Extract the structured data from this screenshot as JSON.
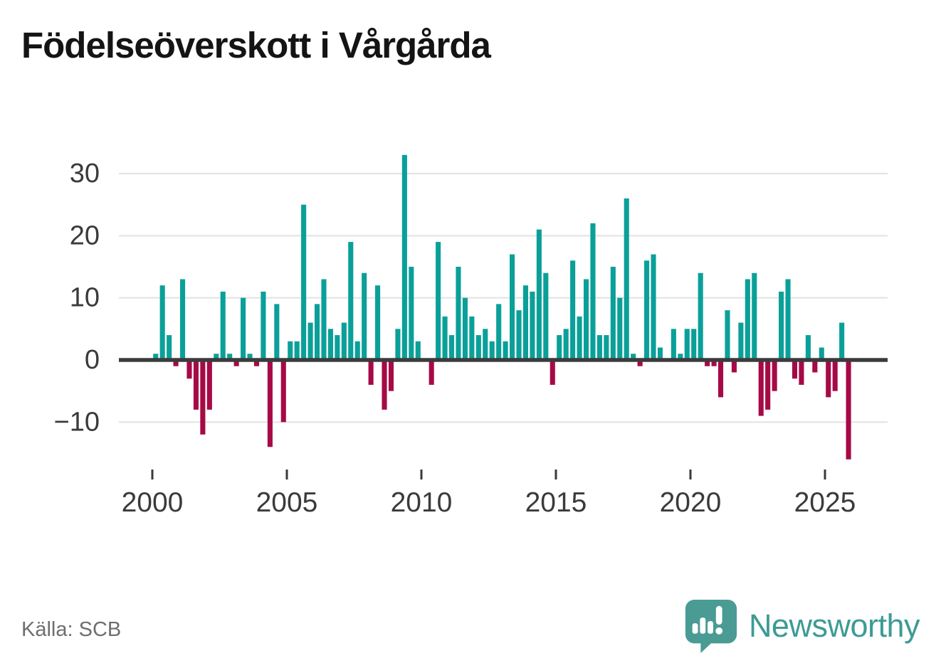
{
  "header": {
    "title": "Födelseöverskott i Vårgårda"
  },
  "footer": {
    "source": "Källa: SCB",
    "brand": "Newsworthy"
  },
  "chart_data": {
    "type": "bar",
    "title": "Födelseöverskott i Vårgårda",
    "xlabel": "",
    "ylabel": "",
    "x_frequency": "quarterly",
    "x_start": "2000Q1",
    "x_end": "2025Q4",
    "x_tick_labels": [
      "2000",
      "2005",
      "2010",
      "2015",
      "2020",
      "2025"
    ],
    "y_ticks": [
      30,
      20,
      10,
      0,
      -10
    ],
    "y_tick_labels": [
      "30",
      "20",
      "10",
      "0",
      "−10"
    ],
    "ylim": [
      -17,
      34
    ],
    "grid": true,
    "legend": false,
    "colors": {
      "positive": "#0aa099",
      "negative": "#a60a46",
      "zero_line": "#3b3b3b",
      "gridline": "#e2e2e2",
      "axis_text": "#3a3a3a"
    },
    "series": [
      {
        "name": "Födelseöverskott per kvartal",
        "values": [
          1,
          12,
          4,
          -1,
          13,
          -3,
          -8,
          -12,
          -8,
          1,
          11,
          1,
          -1,
          10,
          1,
          -1,
          11,
          -14,
          9,
          -10,
          3,
          3,
          25,
          6,
          9,
          13,
          5,
          4,
          6,
          19,
          3,
          14,
          -4,
          12,
          -8,
          -5,
          5,
          33,
          15,
          3,
          0,
          -4,
          19,
          7,
          4,
          15,
          10,
          7,
          4,
          5,
          3,
          9,
          3,
          17,
          8,
          12,
          11,
          21,
          14,
          -4,
          4,
          5,
          16,
          7,
          13,
          22,
          4,
          4,
          15,
          10,
          26,
          1,
          -1,
          16,
          17,
          2,
          0,
          5,
          1,
          5,
          5,
          14,
          -1,
          -1,
          -6,
          8,
          -2,
          6,
          13,
          14,
          -9,
          -8,
          -5,
          11,
          13,
          -3,
          -4,
          4,
          -2,
          2,
          -6,
          -5,
          6,
          -16
        ]
      }
    ]
  }
}
